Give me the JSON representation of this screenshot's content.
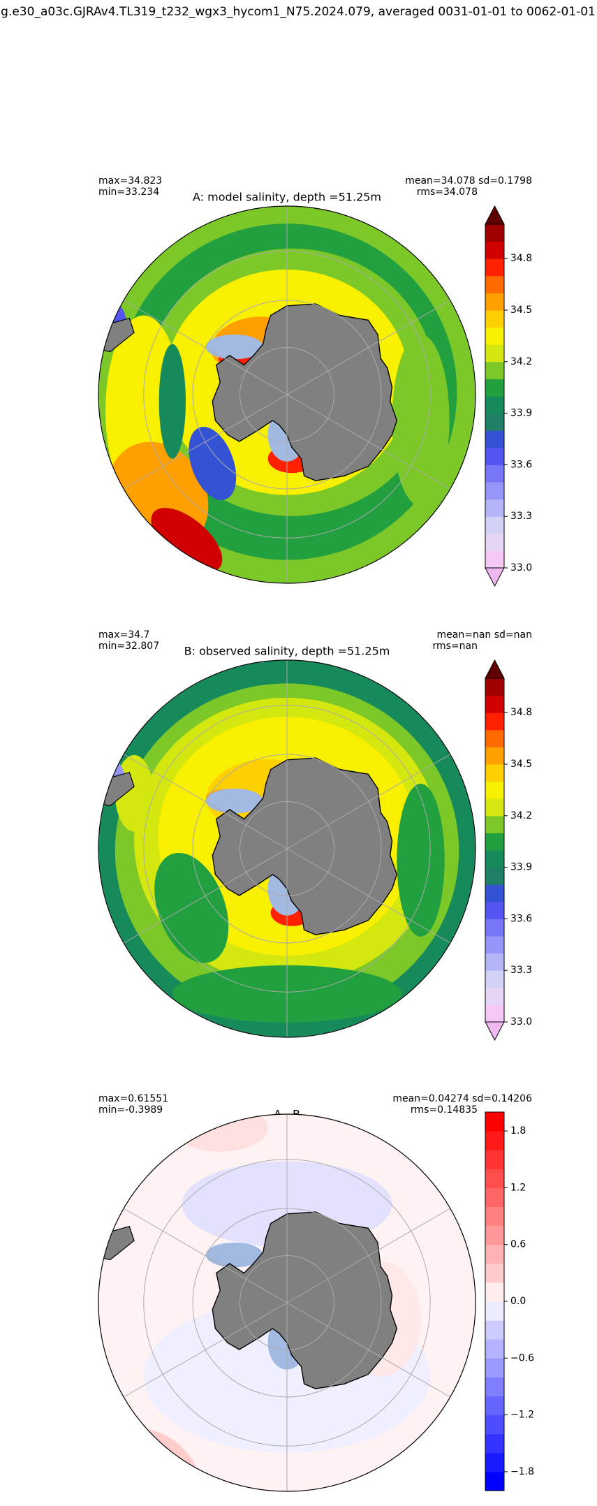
{
  "title": "g.e30_a03c.GJRAv4.TL319_t232_wgx3_hycom1_N75.2024.079, averaged 0031-01-01 to 0062-01-01",
  "panels": [
    {
      "title": "A: model salinity, depth =51.25m",
      "stats_left": [
        "max=34.823",
        "min=33.234"
      ],
      "stats_right": [
        "mean=34.078 sd=0.1798",
        "rms=34.078"
      ],
      "colorbar": {
        "lim": [
          33.0,
          35.0
        ],
        "extend": "both",
        "ticks": [
          {
            "value": 33.0,
            "label": "33.0"
          },
          33.3,
          33.6,
          33.9,
          34.2,
          34.5,
          34.8
        ],
        "colors": [
          "#f5c8f5",
          "#e6d6f6",
          "#d2d2f6",
          "#b4b4f8",
          "#9696f8",
          "#7676f6",
          "#5454f0",
          "#3452d4",
          "#1f7f66",
          "#168a5a",
          "#22a040",
          "#7cc828",
          "#d4e810",
          "#f8f000",
          "#ffd000",
          "#ffa000",
          "#ff6a00",
          "#ff2000",
          "#d00000",
          "#a00000"
        ],
        "under_color": "#f0b8f0",
        "over_color": "#600000"
      }
    },
    {
      "title": "B: observed salinity, depth =51.25m",
      "stats_left": [
        "max=34.7",
        "min=32.807"
      ],
      "stats_right": [
        "mean=nan sd=nan",
        "rms=nan"
      ],
      "colorbar": {
        "lim": [
          33.0,
          35.0
        ],
        "extend": "both",
        "ticks": [
          {
            "value": 33.0,
            "label": "33.0"
          },
          33.3,
          33.6,
          33.9,
          34.2,
          34.5,
          34.8
        ],
        "colors": [
          "#f5c8f5",
          "#e6d6f6",
          "#d2d2f6",
          "#b4b4f8",
          "#9696f8",
          "#7676f6",
          "#5454f0",
          "#3452d4",
          "#1f7f66",
          "#168a5a",
          "#22a040",
          "#7cc828",
          "#d4e810",
          "#f8f000",
          "#ffd000",
          "#ffa000",
          "#ff6a00",
          "#ff2000",
          "#d00000",
          "#a00000"
        ],
        "under_color": "#f0b8f0",
        "over_color": "#600000"
      }
    },
    {
      "title": "A - B",
      "stats_left": [
        "max=0.61551",
        "min=-0.3989"
      ],
      "stats_right": [
        "mean=0.04274 sd=0.14206",
        "rms=0.14835"
      ],
      "colorbar": {
        "lim": [
          -2.0,
          2.0
        ],
        "extend": "neither",
        "ticks": [
          {
            "value": -1.8,
            "label": "−1.8"
          },
          {
            "value": -1.2,
            "label": "−1.2"
          },
          {
            "value": -0.6,
            "label": "−0.6"
          },
          {
            "value": 0,
            "label": "0.0"
          },
          0.6,
          1.2,
          1.8
        ],
        "colors": [
          "#0000ff",
          "#1a1aff",
          "#3333ff",
          "#4d4dff",
          "#6666ff",
          "#8080ff",
          "#9999ff",
          "#b3b3ff",
          "#ccccff",
          "#ececff",
          "#ffecec",
          "#ffcccc",
          "#ffb3b3",
          "#ff9999",
          "#ff8080",
          "#ff6666",
          "#ff4d4d",
          "#ff3333",
          "#ff1a1a",
          "#ff0000"
        ]
      }
    }
  ]
}
